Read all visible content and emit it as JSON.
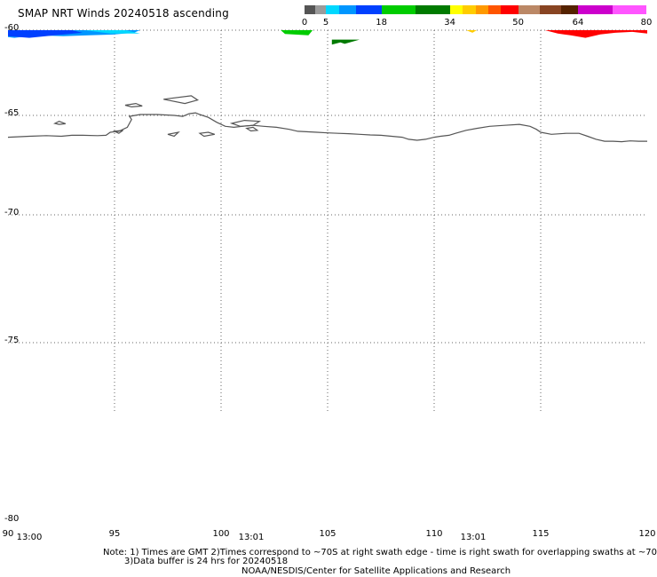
{
  "header": {
    "title": "SMAP NRT Winds 20240518 ascending"
  },
  "color_scale": {
    "tick_labels": [
      "0",
      "5",
      "18",
      "34",
      "50",
      "64",
      "80"
    ],
    "tick_values": [
      0,
      5,
      18,
      34,
      50,
      64,
      80
    ],
    "segments": [
      {
        "from": 0,
        "to": 2.5,
        "color": "#555555"
      },
      {
        "from": 2.5,
        "to": 5,
        "color": "#9b9b9b"
      },
      {
        "from": 5,
        "to": 8,
        "color": "#00d8ff"
      },
      {
        "from": 8,
        "to": 12,
        "color": "#0096ff"
      },
      {
        "from": 12,
        "to": 18,
        "color": "#0040ff"
      },
      {
        "from": 18,
        "to": 26,
        "color": "#00cc00"
      },
      {
        "from": 26,
        "to": 34,
        "color": "#007a00"
      },
      {
        "from": 34,
        "to": 37,
        "color": "#ffff00"
      },
      {
        "from": 37,
        "to": 40,
        "color": "#ffcc00"
      },
      {
        "from": 40,
        "to": 43,
        "color": "#ff9900"
      },
      {
        "from": 43,
        "to": 46,
        "color": "#ff5500"
      },
      {
        "from": 46,
        "to": 50,
        "color": "#ff0000"
      },
      {
        "from": 50,
        "to": 55,
        "color": "#bb8866"
      },
      {
        "from": 55,
        "to": 60,
        "color": "#884422"
      },
      {
        "from": 60,
        "to": 64,
        "color": "#552200"
      },
      {
        "from": 64,
        "to": 72,
        "color": "#cc00cc"
      },
      {
        "from": 72,
        "to": 80,
        "color": "#ff55ff"
      }
    ]
  },
  "map": {
    "lon_range": [
      90,
      120
    ],
    "lat_range": [
      -60,
      -80
    ],
    "lat_gridlines": [
      -60,
      -65,
      -70,
      -75
    ],
    "lon_gridlines": [
      95,
      100,
      105,
      110,
      115
    ],
    "lat_labels": [
      "-60",
      "-65",
      "-70",
      "-75",
      "-80"
    ],
    "lon_labels": [
      "90",
      "95",
      "100",
      "105",
      "110",
      "115",
      "120"
    ],
    "time_labels": [
      {
        "text": "13:00",
        "lon": 91
      },
      {
        "text": "13:01",
        "lon": 101.4
      },
      {
        "text": "13:01",
        "lon": 111.7
      }
    ],
    "coastline_color": "#555555",
    "wind_regions": [
      {
        "color": "#0096ff",
        "lon": [
          90.0,
          90.3,
          91.2,
          92.3,
          93.5,
          94.5,
          95.7,
          96.2,
          95.9,
          95.0,
          93.8,
          92.6,
          91.3,
          90.3,
          90.0
        ],
        "lat": [
          -60.0,
          -60.0,
          -60.0,
          -60.0,
          -60.0,
          -60.0,
          -60.0,
          -60.0,
          -60.15,
          -60.25,
          -60.3,
          -60.35,
          -60.3,
          -60.45,
          -60.4
        ]
      },
      {
        "color": "#0040ff",
        "lon": [
          90.0,
          91.0,
          92.0,
          93.0,
          93.5,
          92.2,
          91.0,
          90.0
        ],
        "lat": [
          -60.0,
          -60.0,
          -60.0,
          -60.0,
          -60.15,
          -60.3,
          -60.45,
          -60.35
        ]
      },
      {
        "color": "#00d8ff",
        "lon": [
          93.6,
          95.5,
          96.2,
          94.8
        ],
        "lat": [
          -60.0,
          -60.0,
          -60.2,
          -60.2
        ]
      },
      {
        "color": "#00cc00",
        "lon": [
          102.8,
          104.3,
          104.1,
          103.0
        ],
        "lat": [
          -60.0,
          -60.0,
          -60.3,
          -60.22
        ]
      },
      {
        "color": "#007a00",
        "lon": [
          105.2,
          106.5,
          105.8,
          105.6,
          105.2
        ],
        "lat": [
          -60.55,
          -60.55,
          -60.8,
          -60.72,
          -60.85
        ]
      },
      {
        "color": "#ffcc00",
        "lon": [
          111.5,
          112.0,
          111.8
        ],
        "lat": [
          -60.0,
          -60.0,
          -60.15
        ]
      },
      {
        "color": "#ff0000",
        "lon": [
          115.2,
          117.0,
          119.0,
          120.0,
          120.0,
          119.3,
          118.5,
          117.8,
          117.1,
          116.4,
          115.8
        ],
        "lat": [
          -60.0,
          -60.0,
          -60.0,
          -60.0,
          -60.2,
          -60.1,
          -60.15,
          -60.25,
          -60.45,
          -60.3,
          -60.2
        ]
      }
    ],
    "coastline": {
      "lon": [
        90.0,
        91.0,
        91.8,
        92.5,
        93.0,
        93.5,
        94.2,
        94.6,
        94.8,
        95.2,
        95.6,
        95.8,
        95.7,
        96.2,
        97.0,
        97.8,
        98.2,
        98.5,
        98.8,
        99.0,
        99.4,
        99.8,
        100.2,
        100.6,
        101.0,
        101.5,
        102.0,
        102.6,
        103.2,
        103.6,
        104.0,
        104.5,
        105.0,
        105.5,
        106.0,
        106.5,
        107.0,
        107.5,
        108.0,
        108.5,
        108.8,
        109.2,
        109.6,
        110.0,
        110.3,
        110.7,
        111.0,
        111.5,
        112.0,
        112.6,
        113.3,
        114.0,
        114.5,
        114.8,
        115.0,
        115.5,
        116.2,
        116.8,
        117.2,
        117.6,
        118.0,
        118.4,
        118.8,
        119.2,
        119.6,
        120.0
      ],
      "lat": [
        -66.1,
        -66.05,
        -66.02,
        -66.05,
        -66.0,
        -66.0,
        -66.02,
        -66.0,
        -65.85,
        -65.8,
        -65.6,
        -65.2,
        -65.05,
        -64.95,
        -64.95,
        -65.0,
        -65.05,
        -64.9,
        -64.85,
        -64.95,
        -65.1,
        -65.35,
        -65.55,
        -65.6,
        -65.55,
        -65.5,
        -65.55,
        -65.6,
        -65.7,
        -65.8,
        -65.82,
        -65.85,
        -65.88,
        -65.9,
        -65.92,
        -65.95,
        -65.98,
        -66.0,
        -66.05,
        -66.1,
        -66.2,
        -66.25,
        -66.2,
        -66.1,
        -66.05,
        -66.0,
        -65.9,
        -65.75,
        -65.65,
        -65.55,
        -65.5,
        -65.45,
        -65.55,
        -65.7,
        -65.85,
        -65.95,
        -65.9,
        -65.9,
        -66.05,
        -66.2,
        -66.3,
        -66.3,
        -66.32,
        -66.28,
        -66.3,
        -66.3
      ]
    },
    "islands": [
      {
        "lon": [
          92.2,
          92.4,
          92.7,
          92.4,
          92.2
        ],
        "lat": [
          -65.4,
          -65.3,
          -65.42,
          -65.45,
          -65.4
        ]
      },
      {
        "lon": [
          95.5,
          96.0,
          96.3,
          95.8,
          95.5
        ],
        "lat": [
          -64.4,
          -64.3,
          -64.45,
          -64.5,
          -64.4
        ]
      },
      {
        "lon": [
          97.3,
          98.6,
          98.9,
          98.3,
          97.3
        ],
        "lat": [
          -64.05,
          -63.85,
          -64.1,
          -64.3,
          -64.05
        ]
      },
      {
        "lon": [
          99.0,
          99.4,
          99.7,
          99.2,
          99.0
        ],
        "lat": [
          -65.9,
          -65.85,
          -65.95,
          -66.05,
          -65.9
        ]
      },
      {
        "lon": [
          100.5,
          101.1,
          101.8,
          101.5,
          100.9,
          100.5
        ],
        "lat": [
          -65.4,
          -65.25,
          -65.3,
          -65.5,
          -65.55,
          -65.4
        ]
      },
      {
        "lon": [
          101.2,
          101.5,
          101.7,
          101.4,
          101.2
        ],
        "lat": [
          -65.65,
          -65.6,
          -65.75,
          -65.78,
          -65.65
        ]
      },
      {
        "lon": [
          95.0,
          95.4,
          95.2,
          95.0
        ],
        "lat": [
          -65.8,
          -65.75,
          -65.9,
          -65.8
        ]
      },
      {
        "lon": [
          97.5,
          98.0,
          97.8,
          97.5
        ],
        "lat": [
          -65.95,
          -65.85,
          -66.05,
          -65.95
        ]
      }
    ]
  },
  "notes": {
    "line1": "Note: 1) Times are GMT 2)Times correspond to ~70S at right swath edge - time is right swath for overlapping swaths at ~70S",
    "line2": "3)Data buffer is 24 hrs for 20240518",
    "line3": "NOAA/NESDIS/Center for Satellite Applications and Research"
  }
}
